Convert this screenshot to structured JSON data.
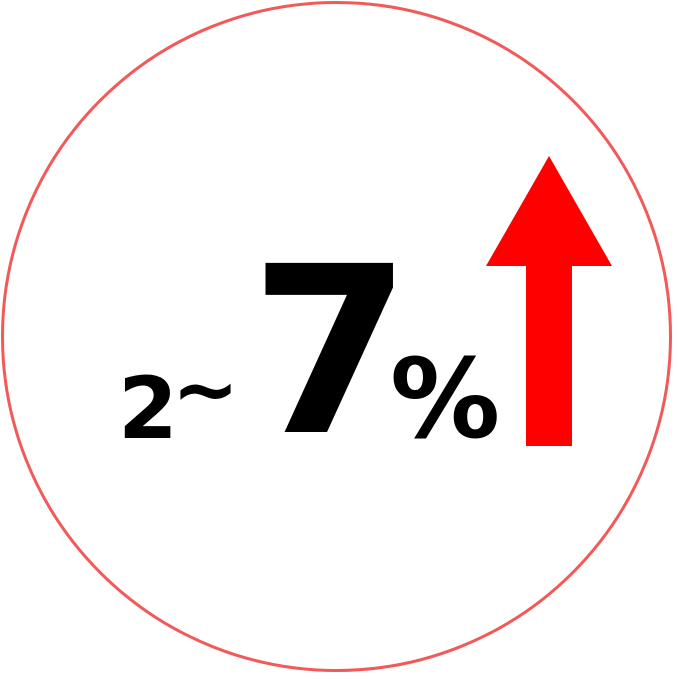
{
  "stat": {
    "low": "2",
    "separator": "~",
    "high": "7",
    "unit": "%"
  },
  "icons": {
    "trend": "arrow-up-icon"
  },
  "colors": {
    "ring": "#f25a5a",
    "arrow": "#ff0000",
    "text": "#000000"
  }
}
